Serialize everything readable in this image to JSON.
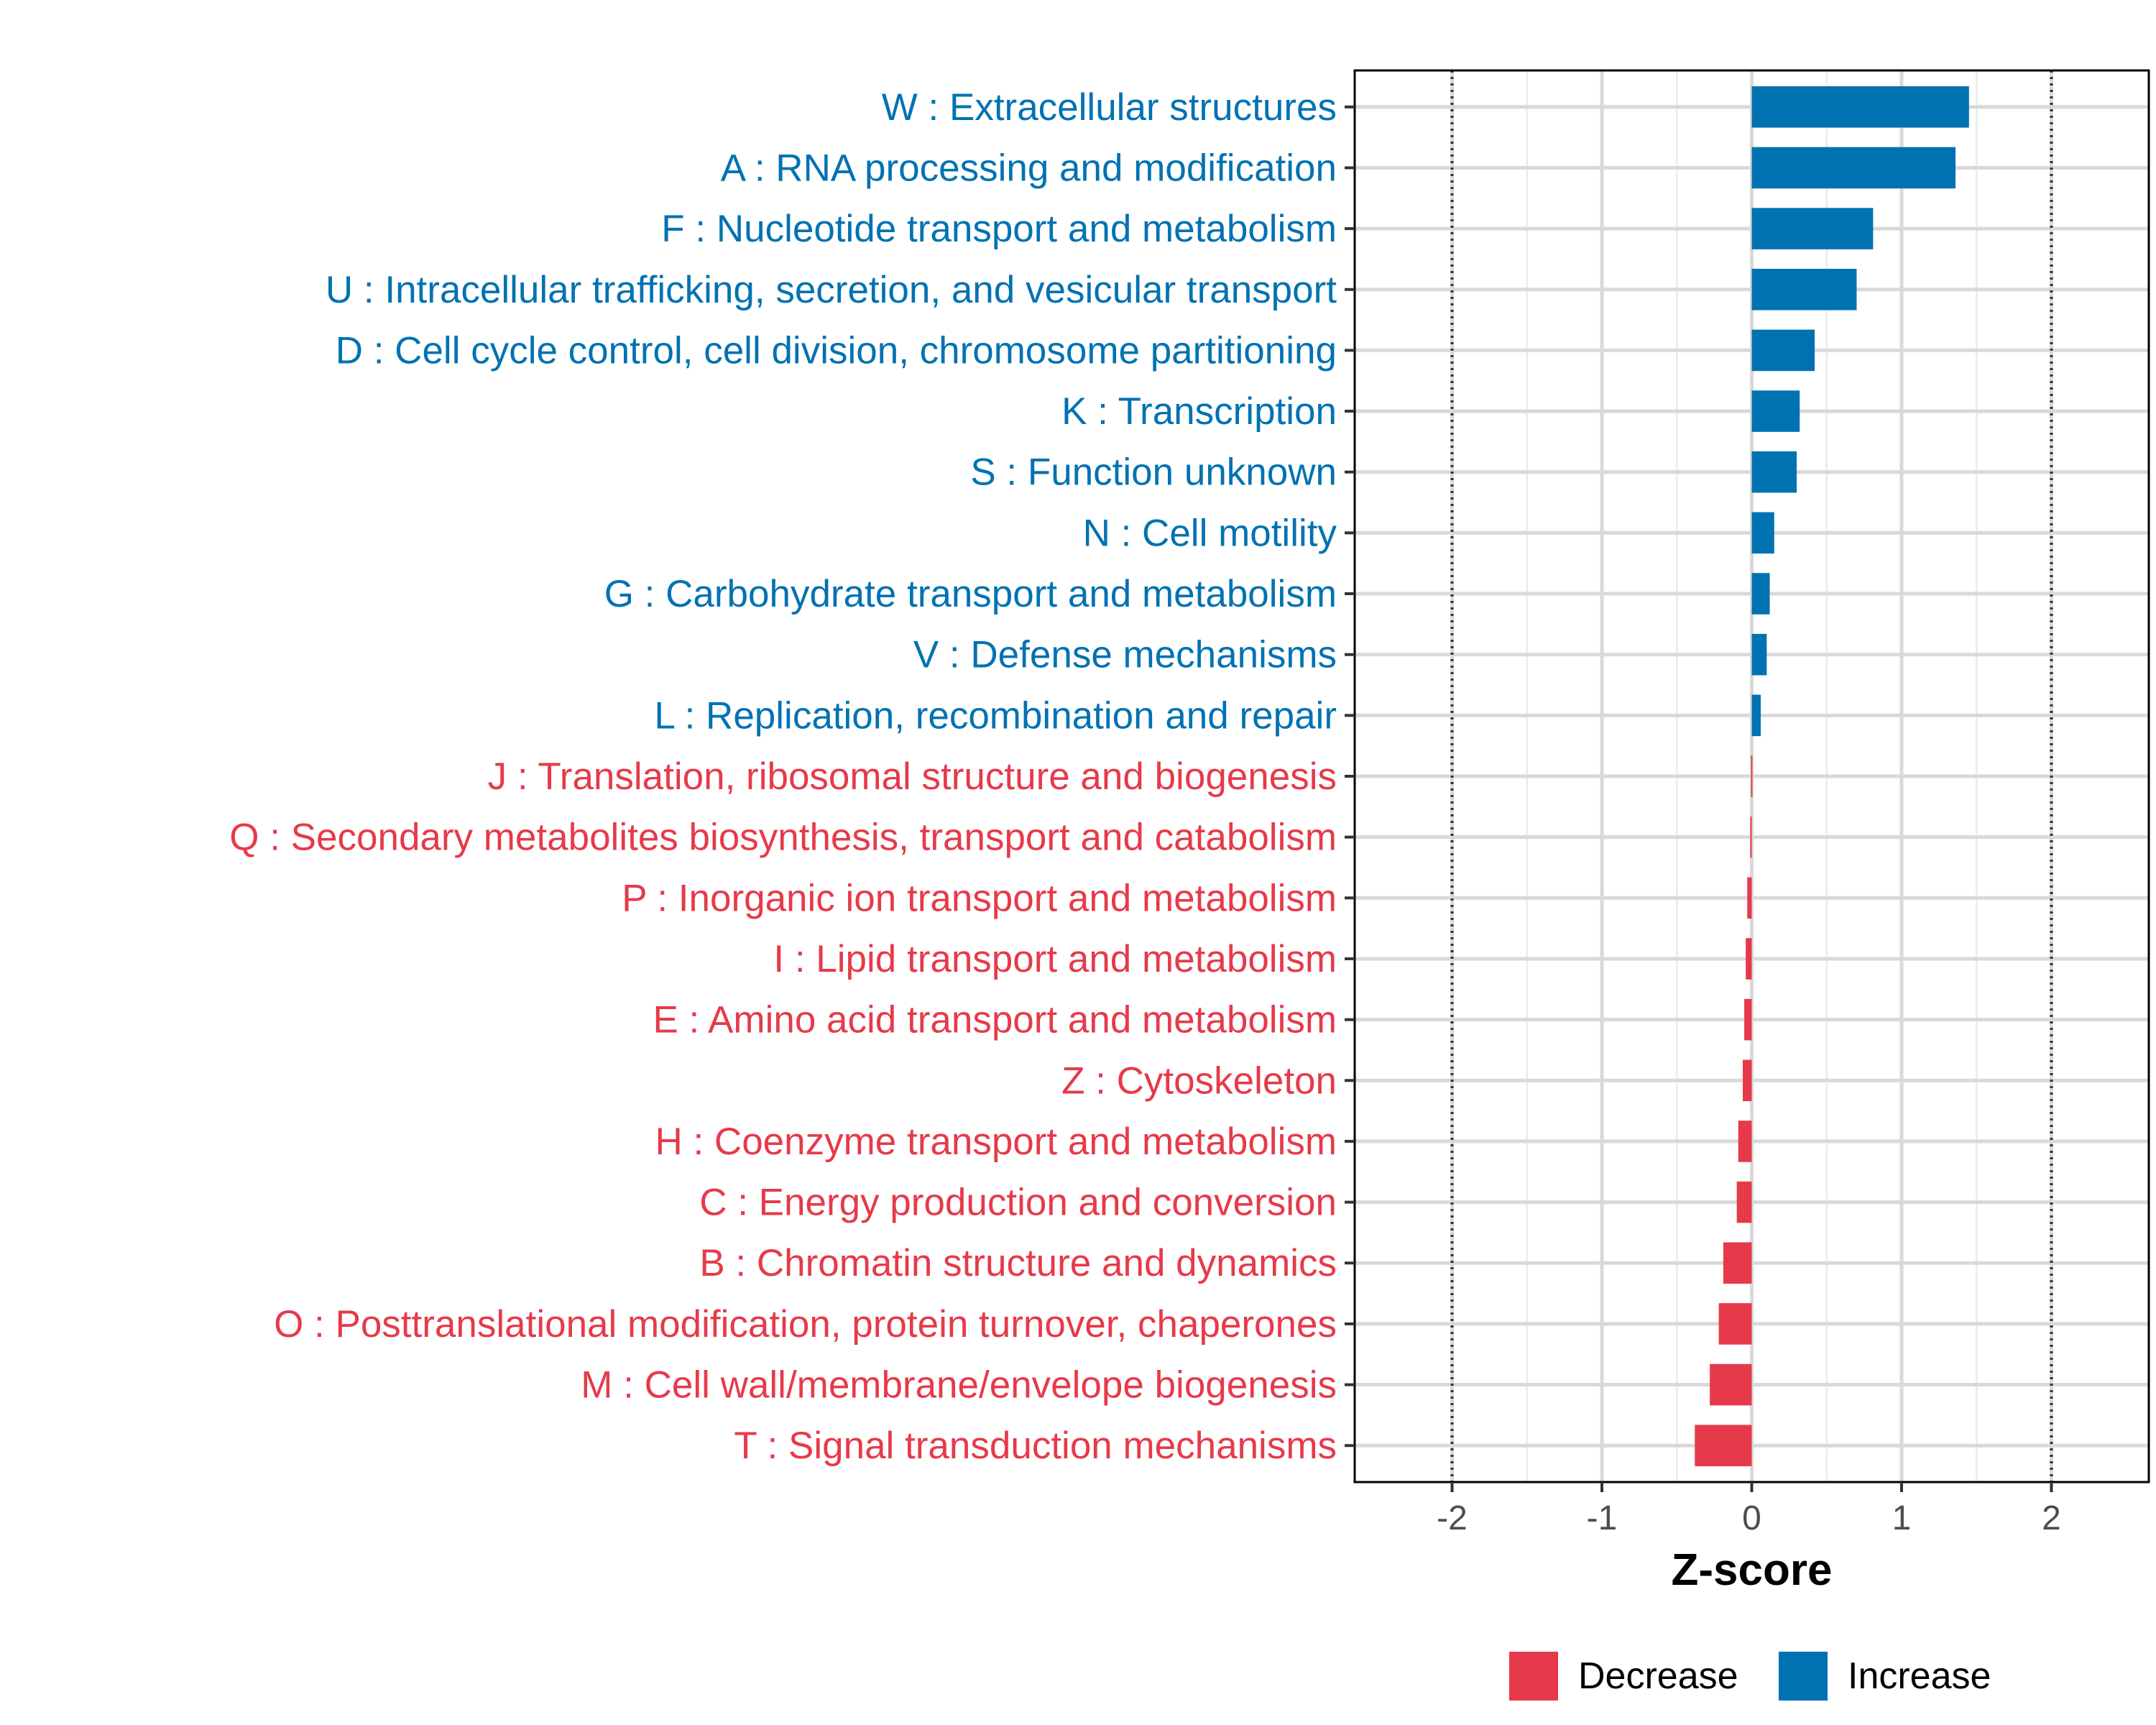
{
  "chart_data": {
    "type": "bar",
    "orientation": "horizontal",
    "xlabel": "Z-score",
    "xlim": [
      -2.65,
      2.65
    ],
    "xticks": [
      {
        "value": -2,
        "label": "-2"
      },
      {
        "value": -1,
        "label": "-1"
      },
      {
        "value": 0,
        "label": "0"
      },
      {
        "value": 1,
        "label": "1"
      },
      {
        "value": 2,
        "label": "2"
      }
    ],
    "threshold_lines": [
      -2,
      2
    ],
    "colors": {
      "Increase": "#0072b2",
      "Decrease": "#e63a4a"
    },
    "legend": {
      "position": "bottom",
      "entries": [
        {
          "name": "Decrease",
          "color": "#e63a4a"
        },
        {
          "name": "Increase",
          "color": "#0072b2"
        }
      ]
    },
    "categories": [
      {
        "label": "W : Extracellular structures",
        "value": 1.45,
        "group": "Increase"
      },
      {
        "label": "A : RNA processing and modification",
        "value": 1.36,
        "group": "Increase"
      },
      {
        "label": "F : Nucleotide transport and metabolism",
        "value": 0.81,
        "group": "Increase"
      },
      {
        "label": "U : Intracellular trafficking, secretion, and vesicular transport",
        "value": 0.7,
        "group": "Increase"
      },
      {
        "label": "D : Cell cycle control, cell division, chromosome partitioning",
        "value": 0.42,
        "group": "Increase"
      },
      {
        "label": "K : Transcription",
        "value": 0.32,
        "group": "Increase"
      },
      {
        "label": "S : Function unknown",
        "value": 0.3,
        "group": "Increase"
      },
      {
        "label": "N : Cell motility",
        "value": 0.15,
        "group": "Increase"
      },
      {
        "label": "G : Carbohydrate transport and metabolism",
        "value": 0.12,
        "group": "Increase"
      },
      {
        "label": "V : Defense mechanisms",
        "value": 0.1,
        "group": "Increase"
      },
      {
        "label": "L : Replication, recombination and repair",
        "value": 0.06,
        "group": "Increase"
      },
      {
        "label": "J : Translation, ribosomal structure and biogenesis",
        "value": -0.005,
        "group": "Decrease"
      },
      {
        "label": "Q : Secondary metabolites biosynthesis, transport and catabolism",
        "value": -0.01,
        "group": "Decrease"
      },
      {
        "label": "P : Inorganic ion transport and metabolism",
        "value": -0.03,
        "group": "Decrease"
      },
      {
        "label": "I : Lipid transport and metabolism",
        "value": -0.04,
        "group": "Decrease"
      },
      {
        "label": "E : Amino acid transport and metabolism",
        "value": -0.05,
        "group": "Decrease"
      },
      {
        "label": "Z : Cytoskeleton",
        "value": -0.06,
        "group": "Decrease"
      },
      {
        "label": "H : Coenzyme transport and metabolism",
        "value": -0.09,
        "group": "Decrease"
      },
      {
        "label": "C : Energy production and conversion",
        "value": -0.1,
        "group": "Decrease"
      },
      {
        "label": "B : Chromatin structure and dynamics",
        "value": -0.19,
        "group": "Decrease"
      },
      {
        "label": "O : Posttranslational modification, protein turnover, chaperones",
        "value": -0.22,
        "group": "Decrease"
      },
      {
        "label": "M : Cell wall/membrane/envelope biogenesis",
        "value": -0.28,
        "group": "Decrease"
      },
      {
        "label": "T : Signal transduction mechanisms",
        "value": -0.38,
        "group": "Decrease"
      }
    ]
  }
}
